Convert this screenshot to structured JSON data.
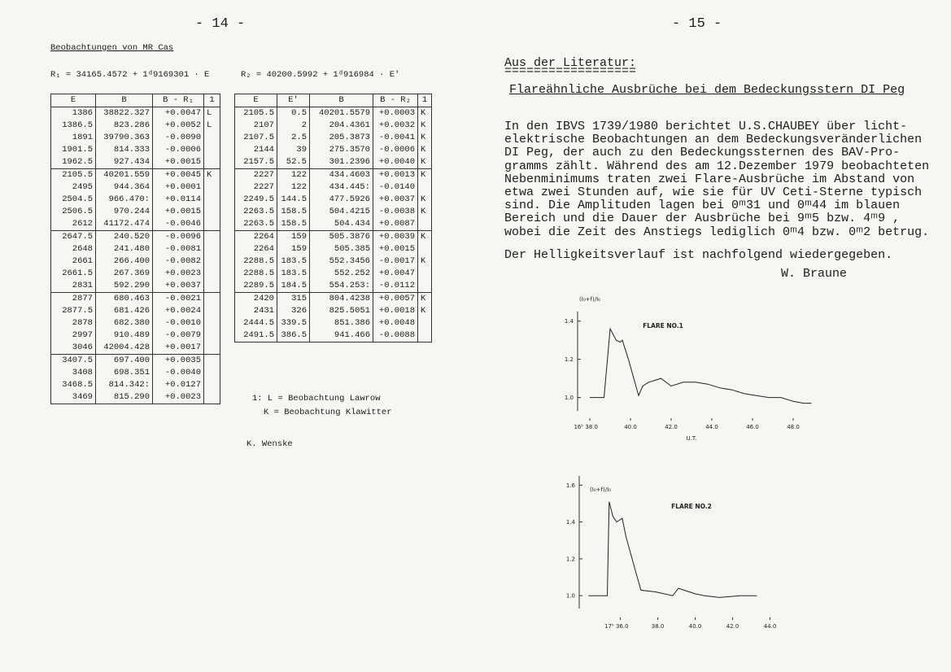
{
  "left_page": {
    "page_number": "- 14 -",
    "heading": "Beobachtungen von MR Cas",
    "formula_1": "R₁ = 34165.4572 + 1ᵈ9169301 · E",
    "formula_2": "R₂ = 40200.5992 + 1ᵈ916984 · E'",
    "table_1": {
      "header": [
        "E",
        "B",
        "B - R₁",
        "1"
      ],
      "rows": [
        [
          "1386",
          "38822.327",
          "+0.0047",
          "L"
        ],
        [
          "1386.5",
          "823.286",
          "+0.0052",
          "L"
        ],
        [
          "1891",
          "39790.363",
          "-0.0090",
          null
        ],
        [
          "1901.5",
          "814.333",
          "-0.0006",
          null
        ],
        [
          "1962.5",
          "927.434",
          "+0.0015",
          null
        ],
        [
          "2105.5",
          "40201.559",
          "+0.0045",
          "K"
        ],
        [
          "2495",
          "944.364",
          "+0.0001",
          null
        ],
        [
          "2504.5",
          "966.470:",
          "+0.0114",
          null
        ],
        [
          "2506.5",
          "970.244",
          "+0.0015",
          null
        ],
        [
          "2612",
          "41172.474",
          "-0.0046",
          null
        ],
        [
          "2647.5",
          "240.520",
          "-0.0096",
          null
        ],
        [
          "2648",
          "241.480",
          "-0.0081",
          null
        ],
        [
          "2661",
          "266.400",
          "-0.0082",
          null
        ],
        [
          "2661.5",
          "267.369",
          "+0.0023",
          null
        ],
        [
          "2831",
          "592.290",
          "+0.0037",
          null
        ],
        [
          "2877",
          "680.463",
          "-0.0021",
          null
        ],
        [
          "2877.5",
          "681.426",
          "+0.0024",
          null
        ],
        [
          "2878",
          "682.380",
          "-0.0010",
          null
        ],
        [
          "2997",
          "910.489",
          "-0.0079",
          null
        ],
        [
          "3046",
          "42004.428",
          "+0.0017",
          null
        ],
        [
          "3407.5",
          "697.400",
          "+0.0035",
          null
        ],
        [
          "3408",
          "698.351",
          "-0.0040",
          null
        ],
        [
          "3468.5",
          "814.342:",
          "+0.0127",
          null
        ],
        [
          "3469",
          "815.290",
          "+0.0023",
          null
        ]
      ]
    },
    "table_2": {
      "header": [
        "E",
        "E'",
        "B",
        "B - R₂",
        "1"
      ],
      "rows": [
        [
          "2105.5",
          "0.5",
          "40201.5579",
          "+0.0003",
          "K"
        ],
        [
          "2107",
          "2",
          "204.4361",
          "+0.0032",
          "K"
        ],
        [
          "2107.5",
          "2.5",
          "205.3873",
          "-0.0041",
          "K"
        ],
        [
          "2144",
          "39",
          "275.3570",
          "-0.0006",
          "K"
        ],
        [
          "2157.5",
          "52.5",
          "301.2396",
          "+0.0040",
          "K"
        ],
        [
          "2227",
          "122",
          "434.4603",
          "+0.0013",
          "K"
        ],
        [
          "2227",
          "122",
          "434.445:",
          "-0.0140",
          null
        ],
        [
          "2249.5",
          "144.5",
          "477.5926",
          "+0.0037",
          "K"
        ],
        [
          "2263.5",
          "158.5",
          "504.4215",
          "-0.0038",
          "K"
        ],
        [
          "2263.5",
          "158.5",
          "504.434",
          "+0.0087",
          null
        ],
        [
          "2264",
          "159",
          "505.3876",
          "+0.0039",
          "K"
        ],
        [
          "2264",
          "159",
          "505.385",
          "+0.0015",
          null
        ],
        [
          "2288.5",
          "183.5",
          "552.3456",
          "-0.0017",
          "K"
        ],
        [
          "2288.5",
          "183.5",
          "552.252",
          "+0.0047",
          null
        ],
        [
          "2289.5",
          "184.5",
          "554.253:",
          "-0.0112",
          null
        ],
        [
          "2420",
          "315",
          "804.4238",
          "+0.0057",
          "K"
        ],
        [
          "2431",
          "326",
          "825.5051",
          "+0.0018",
          "K"
        ],
        [
          "2444.5",
          "339.5",
          "851.386",
          "+0.0048",
          null
        ],
        [
          "2491.5",
          "386.5",
          "941.466",
          "-0.0088",
          null
        ]
      ]
    },
    "legend": [
      "1: L = Beobachtung Lawrow",
      "K = Beobachtung Klawitter"
    ],
    "author": "K. Wenske"
  },
  "right_page": {
    "page_number": "- 15 -",
    "section": "Aus der Literatur:",
    "section_rule": "==================",
    "title": "Flareähnliche Ausbrüche bei dem Bedeckungsstern DI Peg",
    "paragraph": [
      "In den IBVS 1739/1980 berichtet U.S.CHAUBEY über licht-",
      "elektrische Beobachtungen an dem Bedeckungsveränderlichen",
      "DI Peg, der auch zu den Bedeckungssternen des BAV-Pro-",
      "gramms zählt. Während des am 12.Dezember 1979 beobachteten",
      "Nebenminimums traten zwei Flare-Ausbrüche im Abstand von",
      "etwa zwei Stunden auf, wie sie für UV Ceti-Sterne typisch",
      "sind. Die Amplituden lagen bei 0ᵐ31 und 0ᵐ44 im blauen",
      "Bereich und die Dauer der Ausbrüche bei 9ᵐ5 bzw. 4ᵐ9 ,",
      "wobei die Zeit des Anstiegs lediglich 0ᵐ4 bzw. 0ᵐ2 betrug."
    ],
    "closing": "Der Helligkeitsverlauf ist nachfolgend wiedergegeben.",
    "author": "W. Braune"
  },
  "chart_data": [
    {
      "type": "line",
      "title": "FLARE NO.1",
      "y_label": "(I₀+f)/I₀",
      "x_label": "U.T.",
      "color": "#222222",
      "x": [
        38.0,
        38.7,
        39.0,
        39.3,
        39.5,
        39.6,
        39.9,
        40.4,
        40.6,
        40.9,
        41.2,
        41.5,
        42.0,
        42.6,
        43.2,
        43.8,
        44.4,
        45.0,
        45.6,
        46.2,
        46.8,
        47.4,
        48.0,
        48.5,
        48.9
      ],
      "values": [
        1.0,
        1.0,
        1.36,
        1.3,
        1.29,
        1.3,
        1.2,
        1.01,
        1.06,
        1.08,
        1.09,
        1.1,
        1.06,
        1.08,
        1.08,
        1.07,
        1.05,
        1.04,
        1.02,
        1.01,
        1.0,
        1.0,
        0.98,
        0.97,
        0.97
      ],
      "xlim": [
        37.4,
        49
      ],
      "ylim": [
        0.93,
        1.45
      ],
      "xticks": [
        {
          "value": 38,
          "label": "16ʰ 38.0"
        },
        {
          "value": 40,
          "label": "40.0"
        },
        {
          "value": 42,
          "label": "42.0"
        },
        {
          "value": 44,
          "label": "44.0"
        },
        {
          "value": 46,
          "label": "46.0"
        },
        {
          "value": 48,
          "label": "48.0"
        }
      ],
      "yticks": [
        {
          "value": 1,
          "label": "1.0"
        },
        1.2,
        1.4
      ]
    },
    {
      "type": "line",
      "title": "FLARE NO.2",
      "y_label": "(I₀+f)/I₀",
      "color": "#222222",
      "x": [
        34.3,
        35.3,
        35.4,
        35.6,
        35.8,
        36.1,
        36.3,
        36.6,
        36.9,
        37.1,
        37.9,
        38.8,
        39.1,
        39.4,
        40.0,
        40.5,
        41.3,
        42.4,
        43.3
      ],
      "values": [
        1.0,
        1.0,
        1.51,
        1.43,
        1.4,
        1.42,
        1.32,
        1.21,
        1.1,
        1.03,
        1.02,
        1.0,
        1.04,
        1.03,
        1.01,
        1.0,
        0.99,
        1.0,
        1.0
      ],
      "xlim": [
        33.8,
        44.5
      ],
      "ylim": [
        0.93,
        1.65
      ],
      "xticks": [
        {
          "value": 36,
          "label": "17ʰ 36.0"
        },
        {
          "value": 38,
          "label": "38.0"
        },
        {
          "value": 40,
          "label": "40.0"
        },
        {
          "value": 42,
          "label": "42.0"
        },
        {
          "value": 44,
          "label": "44.0"
        }
      ],
      "yticks": [
        {
          "value": 1,
          "label": "1.0"
        },
        1.2,
        1.4,
        1.6
      ]
    }
  ]
}
